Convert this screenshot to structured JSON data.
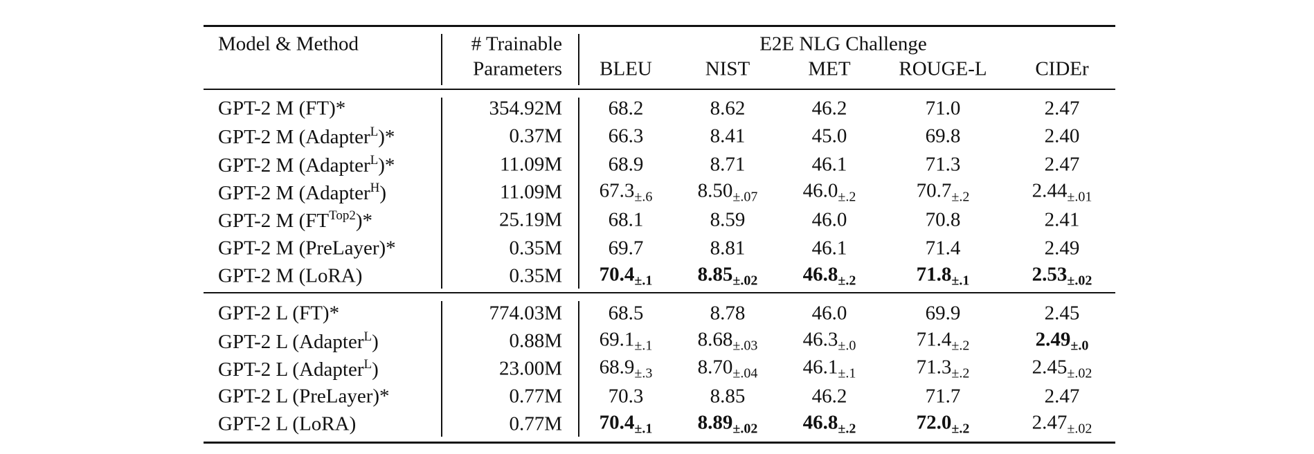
{
  "header": {
    "model": "Model & Method",
    "params": [
      "# Trainable",
      "Parameters"
    ],
    "group": "E2E NLG Challenge",
    "metrics": [
      "BLEU",
      "NIST",
      "MET",
      "ROUGE-L",
      "CIDEr"
    ]
  },
  "sections": [
    {
      "rows": [
        {
          "model": {
            "name": "GPT-2 M (FT)*"
          },
          "params": "354.92M",
          "scores": [
            {
              "v": "68.2"
            },
            {
              "v": "8.62"
            },
            {
              "v": "46.2"
            },
            {
              "v": "71.0"
            },
            {
              "v": "2.47"
            }
          ]
        },
        {
          "model": {
            "name": "GPT-2 M (Adapter",
            "sup": "L",
            "suffix": ")*"
          },
          "params": "0.37M",
          "scores": [
            {
              "v": "66.3"
            },
            {
              "v": "8.41"
            },
            {
              "v": "45.0"
            },
            {
              "v": "69.8"
            },
            {
              "v": "2.40"
            }
          ]
        },
        {
          "model": {
            "name": "GPT-2 M (Adapter",
            "sup": "L",
            "suffix": ")*"
          },
          "params": "11.09M",
          "scores": [
            {
              "v": "68.9"
            },
            {
              "v": "8.71"
            },
            {
              "v": "46.1"
            },
            {
              "v": "71.3"
            },
            {
              "v": "2.47"
            }
          ]
        },
        {
          "model": {
            "name": "GPT-2 M (Adapter",
            "sup": "H",
            "suffix": ")"
          },
          "params": "11.09M",
          "scores": [
            {
              "v": "67.3",
              "sd": "±.6"
            },
            {
              "v": "8.50",
              "sd": "±.07"
            },
            {
              "v": "46.0",
              "sd": "±.2"
            },
            {
              "v": "70.7",
              "sd": "±.2"
            },
            {
              "v": "2.44",
              "sd": "±.01"
            }
          ]
        },
        {
          "model": {
            "name": "GPT-2 M (FT",
            "sup": "Top2",
            "suffix": ")*"
          },
          "params": "25.19M",
          "scores": [
            {
              "v": "68.1"
            },
            {
              "v": "8.59"
            },
            {
              "v": "46.0"
            },
            {
              "v": "70.8"
            },
            {
              "v": "2.41"
            }
          ]
        },
        {
          "model": {
            "name": "GPT-2 M (PreLayer)*"
          },
          "params": "0.35M",
          "scores": [
            {
              "v": "69.7"
            },
            {
              "v": "8.81"
            },
            {
              "v": "46.1"
            },
            {
              "v": "71.4"
            },
            {
              "v": "2.49"
            }
          ]
        },
        {
          "model": {
            "name": "GPT-2 M (LoRA)"
          },
          "params": "0.35M",
          "scores": [
            {
              "v": "70.4",
              "sd": "±.1",
              "bold": true
            },
            {
              "v": "8.85",
              "sd": "±.02",
              "bold": true
            },
            {
              "v": "46.8",
              "sd": "±.2",
              "bold": true
            },
            {
              "v": "71.8",
              "sd": "±.1",
              "bold": true
            },
            {
              "v": "2.53",
              "sd": "±.02",
              "bold": true
            }
          ]
        }
      ]
    },
    {
      "rows": [
        {
          "model": {
            "name": "GPT-2 L (FT)*"
          },
          "params": "774.03M",
          "scores": [
            {
              "v": "68.5"
            },
            {
              "v": "8.78"
            },
            {
              "v": "46.0"
            },
            {
              "v": "69.9"
            },
            {
              "v": "2.45"
            }
          ]
        },
        {
          "model": {
            "name": "GPT-2 L (Adapter",
            "sup": "L",
            "suffix": ")"
          },
          "params": "0.88M",
          "scores": [
            {
              "v": "69.1",
              "sd": "±.1"
            },
            {
              "v": "8.68",
              "sd": "±.03"
            },
            {
              "v": "46.3",
              "sd": "±.0"
            },
            {
              "v": "71.4",
              "sd": "±.2"
            },
            {
              "v": "2.49",
              "sd": "±.0",
              "bold": true
            }
          ]
        },
        {
          "model": {
            "name": "GPT-2 L (Adapter",
            "sup": "L",
            "suffix": ")"
          },
          "params": "23.00M",
          "scores": [
            {
              "v": "68.9",
              "sd": "±.3"
            },
            {
              "v": "8.70",
              "sd": "±.04"
            },
            {
              "v": "46.1",
              "sd": "±.1"
            },
            {
              "v": "71.3",
              "sd": "±.2"
            },
            {
              "v": "2.45",
              "sd": "±.02"
            }
          ]
        },
        {
          "model": {
            "name": "GPT-2 L (PreLayer)*"
          },
          "params": "0.77M",
          "scores": [
            {
              "v": "70.3"
            },
            {
              "v": "8.85"
            },
            {
              "v": "46.2"
            },
            {
              "v": "71.7"
            },
            {
              "v": "2.47"
            }
          ]
        },
        {
          "model": {
            "name": "GPT-2 L (LoRA)"
          },
          "params": "0.77M",
          "scores": [
            {
              "v": "70.4",
              "sd": "±.1",
              "bold": true
            },
            {
              "v": "8.89",
              "sd": "±.02",
              "bold": true
            },
            {
              "v": "46.8",
              "sd": "±.2",
              "bold": true
            },
            {
              "v": "72.0",
              "sd": "±.2",
              "bold": true
            },
            {
              "v": "2.47",
              "sd": "±.02"
            }
          ]
        }
      ]
    }
  ]
}
